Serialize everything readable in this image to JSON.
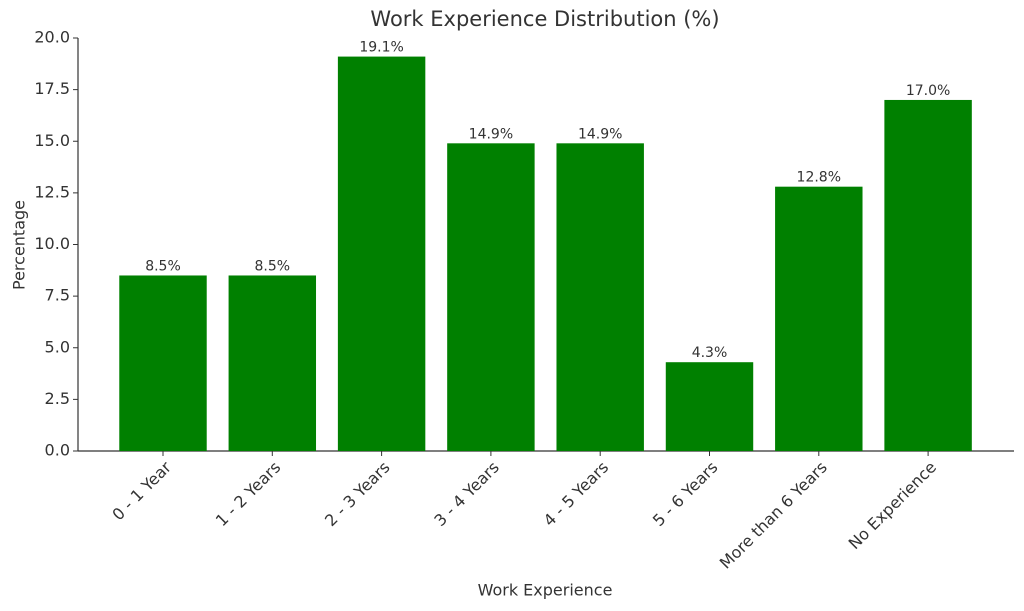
{
  "chart_data": {
    "type": "bar",
    "title": "Work Experience Distribution (%)",
    "x_label": "Work Experience",
    "y_label": "Percentage",
    "categories": [
      "0 - 1 Year",
      "1 - 2 Years",
      "2 - 3 Years",
      "3 - 4 Years",
      "4 - 5 Years",
      "5 - 6 Years",
      "More than 6 Years",
      "No Experience"
    ],
    "values": [
      8.5,
      8.5,
      19.1,
      14.9,
      14.9,
      4.3,
      12.8,
      17.0
    ],
    "value_labels": [
      "8.5%",
      "8.5%",
      "19.1%",
      "14.9%",
      "14.9%",
      "4.3%",
      "12.8%",
      "17.0%"
    ],
    "color": "#008000",
    "ylim": [
      0,
      20
    ],
    "yticks": [
      {
        "value": 0,
        "label": "0.0"
      },
      2.5,
      {
        "value": 5,
        "label": "5.0"
      },
      7.5,
      {
        "value": 10,
        "label": "10.0"
      },
      12.5,
      {
        "value": 15,
        "label": "15.0"
      },
      17.5,
      {
        "value": 20,
        "label": "20.0"
      }
    ],
    "grid": false
  }
}
